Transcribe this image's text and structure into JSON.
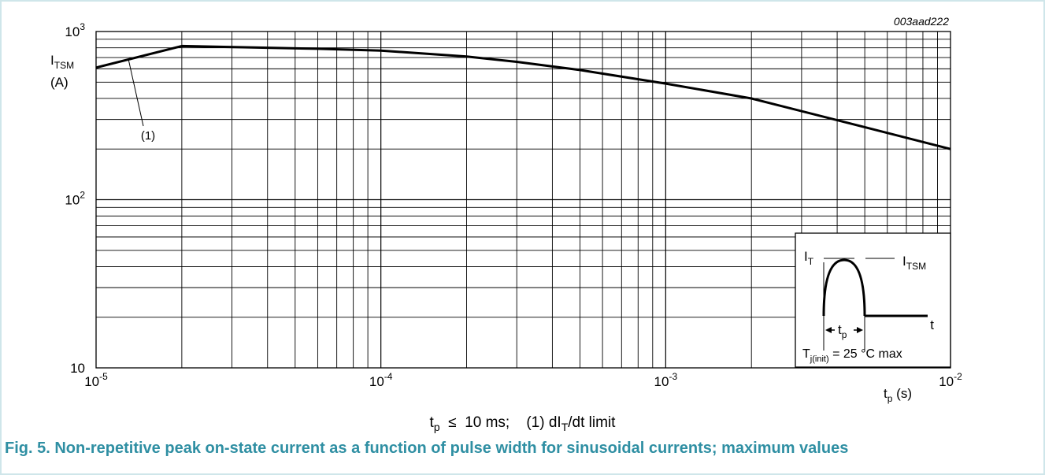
{
  "figure_id": "003aad222",
  "condition_line": {
    "tp_symbol": "t",
    "tp_sub": "p",
    "leq": "≤",
    "tp_value": "10 ms;",
    "note_prefix": "(1) dI",
    "note_sub": "T",
    "note_suffix": "/dt limit"
  },
  "caption": "Fig. 5. Non-repetitive peak on-state current as a function of pulse width for sinusoidal currents; maximum values",
  "inset": {
    "it_label": "I",
    "it_sub": "T",
    "itsm_label": "I",
    "itsm_sub": "TSM",
    "t_label": "t",
    "tp_label": "t",
    "tp_sub": "p",
    "tj_label": "T",
    "tj_sub": "j(init)",
    "tj_value": "= 25 °C max"
  },
  "chart_data": {
    "type": "line",
    "title": "",
    "xscale": "log",
    "yscale": "log",
    "xlim": [
      1e-05,
      0.01
    ],
    "ylim": [
      10,
      1000
    ],
    "grid": true,
    "ylabel": {
      "main": "I",
      "sub": "TSM",
      "unit": "(A)"
    },
    "xlabel": {
      "main": "t",
      "sub": "p",
      "unit": "(s)"
    },
    "x_ticks": [
      {
        "base": "10",
        "exp": "-5"
      },
      {
        "base": "10",
        "exp": "-4"
      },
      {
        "base": "10",
        "exp": "-3"
      },
      {
        "base": "10",
        "exp": "-2"
      }
    ],
    "y_ticks": [
      {
        "base": "10",
        "exp": ""
      },
      {
        "base": "10",
        "exp": "2"
      },
      {
        "base": "10",
        "exp": "3"
      }
    ],
    "series": [
      {
        "name": "(1)",
        "x": [
          1e-05,
          2e-05,
          6e-05,
          0.0001,
          0.0002,
          0.0003,
          0.0005,
          0.001,
          0.002,
          0.005,
          0.01
        ],
        "y": [
          610,
          820,
          790,
          770,
          710,
          660,
          590,
          490,
          400,
          270,
          200
        ]
      }
    ]
  }
}
